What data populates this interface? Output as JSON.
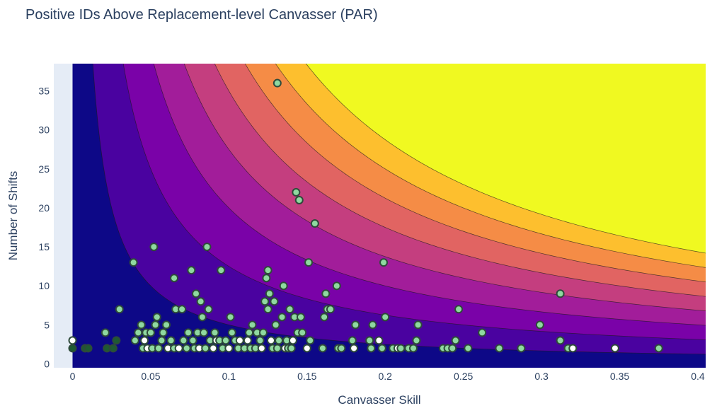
{
  "chart_data": {
    "type": "scatter",
    "title": "Positive IDs Above Replacement-level Canvasser (PAR)",
    "xlabel": "Canvasser Skill",
    "ylabel": "Number of Shifts",
    "xlim": [
      -0.012,
      0.405
    ],
    "ylim": [
      -0.5,
      38.5
    ],
    "x_ticks": [
      0,
      0.05,
      0.1,
      0.15,
      0.2,
      0.25,
      0.3,
      0.35,
      0.4
    ],
    "x_tick_labels": [
      "0",
      "0.05",
      "0.1",
      "0.15",
      "0.2",
      "0.25",
      "0.3",
      "0.35",
      "0.4"
    ],
    "y_ticks": [
      0,
      5,
      10,
      15,
      20,
      25,
      30,
      35
    ],
    "y_tick_labels": [
      "0",
      "5",
      "10",
      "15",
      "20",
      "25",
      "30",
      "35"
    ],
    "background": {
      "type": "contour",
      "function": "x*y",
      "levels": [
        0.5,
        1.25,
        2,
        2.75,
        3.5,
        4.25,
        5,
        5.75
      ],
      "colors": [
        "#0d0887",
        "#4a02a0",
        "#7a02a8",
        "#a21d9a",
        "#c43e7f",
        "#e16462",
        "#f58c46",
        "#fdbf2e",
        "#f0f921"
      ]
    },
    "colors": {
      "marker_fill_light": "#8fd9a0",
      "marker_fill_white": "#ffffff",
      "marker_fill_dark": "#1e5a32",
      "marker_edge": "#2e4a3a",
      "plot_bg": "#e5ecf6"
    },
    "points": [
      [
        0,
        2
      ],
      [
        0,
        3
      ],
      [
        0.008,
        2
      ],
      [
        0.01,
        2
      ],
      [
        0.021,
        4
      ],
      [
        0.022,
        2
      ],
      [
        0.026,
        2
      ],
      [
        0.028,
        3
      ],
      [
        0.03,
        7
      ],
      [
        0.039,
        13
      ],
      [
        0.04,
        3
      ],
      [
        0.042,
        4
      ],
      [
        0.044,
        5
      ],
      [
        0.045,
        2
      ],
      [
        0.046,
        3
      ],
      [
        0.047,
        4
      ],
      [
        0.048,
        2
      ],
      [
        0.05,
        4
      ],
      [
        0.051,
        2
      ],
      [
        0.052,
        15
      ],
      [
        0.053,
        5
      ],
      [
        0.054,
        6
      ],
      [
        0.055,
        2
      ],
      [
        0.057,
        3
      ],
      [
        0.058,
        4
      ],
      [
        0.06,
        5
      ],
      [
        0.061,
        2
      ],
      [
        0.063,
        3
      ],
      [
        0.065,
        11
      ],
      [
        0.065,
        2
      ],
      [
        0.066,
        7
      ],
      [
        0.068,
        2
      ],
      [
        0.07,
        7
      ],
      [
        0.071,
        3
      ],
      [
        0.073,
        2
      ],
      [
        0.074,
        4
      ],
      [
        0.076,
        12
      ],
      [
        0.077,
        3
      ],
      [
        0.078,
        2
      ],
      [
        0.079,
        9
      ],
      [
        0.08,
        4
      ],
      [
        0.081,
        2
      ],
      [
        0.082,
        8
      ],
      [
        0.083,
        6
      ],
      [
        0.084,
        4
      ],
      [
        0.085,
        2
      ],
      [
        0.086,
        15
      ],
      [
        0.087,
        7
      ],
      [
        0.088,
        3
      ],
      [
        0.09,
        2
      ],
      [
        0.091,
        4
      ],
      [
        0.092,
        3
      ],
      [
        0.094,
        3
      ],
      [
        0.095,
        12
      ],
      [
        0.096,
        2
      ],
      [
        0.098,
        3
      ],
      [
        0.1,
        2
      ],
      [
        0.101,
        6
      ],
      [
        0.102,
        4
      ],
      [
        0.104,
        3
      ],
      [
        0.106,
        2
      ],
      [
        0.107,
        3
      ],
      [
        0.11,
        2
      ],
      [
        0.112,
        3
      ],
      [
        0.113,
        4
      ],
      [
        0.114,
        2
      ],
      [
        0.115,
        5
      ],
      [
        0.117,
        2
      ],
      [
        0.118,
        4
      ],
      [
        0.12,
        3
      ],
      [
        0.121,
        2
      ],
      [
        0.122,
        4
      ],
      [
        0.123,
        8
      ],
      [
        0.124,
        11
      ],
      [
        0.125,
        12
      ],
      [
        0.125,
        7
      ],
      [
        0.126,
        9
      ],
      [
        0.127,
        3
      ],
      [
        0.128,
        2
      ],
      [
        0.129,
        8
      ],
      [
        0.13,
        5
      ],
      [
        0.131,
        36
      ],
      [
        0.131,
        2
      ],
      [
        0.132,
        3
      ],
      [
        0.134,
        6
      ],
      [
        0.135,
        10
      ],
      [
        0.136,
        2
      ],
      [
        0.137,
        3
      ],
      [
        0.138,
        2
      ],
      [
        0.139,
        7
      ],
      [
        0.14,
        2
      ],
      [
        0.141,
        3
      ],
      [
        0.142,
        6
      ],
      [
        0.143,
        22
      ],
      [
        0.144,
        4
      ],
      [
        0.145,
        21
      ],
      [
        0.146,
        6
      ],
      [
        0.147,
        4
      ],
      [
        0.15,
        2
      ],
      [
        0.151,
        13
      ],
      [
        0.152,
        3
      ],
      [
        0.155,
        18
      ],
      [
        0.16,
        2
      ],
      [
        0.161,
        6
      ],
      [
        0.162,
        9
      ],
      [
        0.163,
        7
      ],
      [
        0.165,
        7
      ],
      [
        0.169,
        10
      ],
      [
        0.17,
        2
      ],
      [
        0.172,
        2
      ],
      [
        0.179,
        3
      ],
      [
        0.18,
        2
      ],
      [
        0.181,
        5
      ],
      [
        0.19,
        3
      ],
      [
        0.191,
        2
      ],
      [
        0.192,
        5
      ],
      [
        0.196,
        3
      ],
      [
        0.198,
        2
      ],
      [
        0.199,
        13
      ],
      [
        0.2,
        6
      ],
      [
        0.205,
        2
      ],
      [
        0.208,
        2
      ],
      [
        0.21,
        2
      ],
      [
        0.215,
        2
      ],
      [
        0.218,
        2
      ],
      [
        0.22,
        3
      ],
      [
        0.221,
        5
      ],
      [
        0.237,
        2
      ],
      [
        0.24,
        2
      ],
      [
        0.243,
        2
      ],
      [
        0.245,
        3
      ],
      [
        0.247,
        7
      ],
      [
        0.253,
        2
      ],
      [
        0.262,
        4
      ],
      [
        0.273,
        2
      ],
      [
        0.287,
        2
      ],
      [
        0.299,
        5
      ],
      [
        0.312,
        9
      ],
      [
        0.312,
        3
      ],
      [
        0.317,
        2
      ],
      [
        0.32,
        2
      ],
      [
        0.347,
        2
      ],
      [
        0.375,
        2
      ]
    ]
  }
}
